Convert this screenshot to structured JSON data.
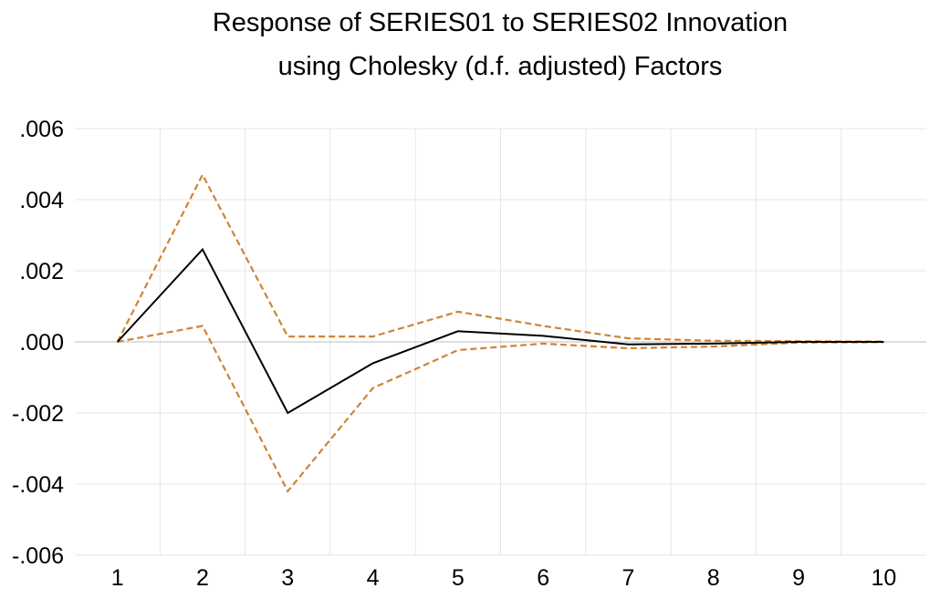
{
  "chart_data": {
    "type": "line",
    "title": [
      "Response of SERIES01 to SERIES02 Innovation",
      "using Cholesky (d.f. adjusted) Factors"
    ],
    "xlabel": "",
    "ylabel": "",
    "categories": [
      "1",
      "2",
      "3",
      "4",
      "5",
      "6",
      "7",
      "8",
      "9",
      "10"
    ],
    "ylim": [
      -0.006,
      0.006
    ],
    "yticks": [
      0.006,
      0.004,
      0.002,
      0.0,
      -0.002,
      -0.004,
      -0.006
    ],
    "ytick_labels": [
      ".006",
      ".004",
      ".002",
      ".000",
      "-.002",
      "-.004",
      "-.006"
    ],
    "grid": true,
    "legend": "none",
    "series": [
      {
        "name": "Response",
        "style": "solid",
        "color": "#000000",
        "values": [
          0.0,
          0.0026,
          -0.002,
          -0.0006,
          0.0003,
          0.00017,
          -7e-05,
          -5e-05,
          0.0,
          0.0
        ]
      },
      {
        "name": "Upper band",
        "style": "dashed",
        "color": "#d08335",
        "values": [
          0.0,
          0.0047,
          0.00015,
          0.00015,
          0.00085,
          0.00045,
          0.0001,
          3e-05,
          2e-05,
          1e-05
        ]
      },
      {
        "name": "Lower band",
        "style": "dashed",
        "color": "#d08335",
        "values": [
          0.0,
          0.00045,
          -0.0042,
          -0.0013,
          -0.00023,
          -5e-05,
          -0.00018,
          -0.00013,
          -2e-05,
          -1e-05
        ]
      }
    ]
  }
}
